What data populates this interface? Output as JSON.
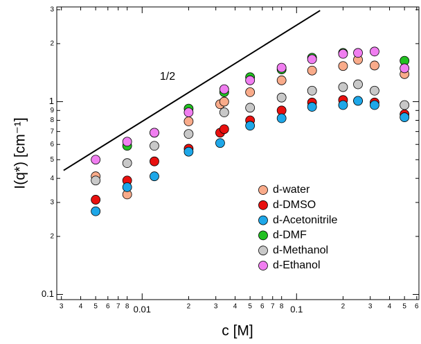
{
  "chart_data": {
    "type": "scatter",
    "xlabel": "c [M]",
    "ylabel": "I(q*) [cm⁻¹]",
    "log_x": true,
    "log_y": true,
    "xlim": [
      0.0028,
      0.62
    ],
    "ylim": [
      0.094,
      3.1
    ],
    "xticks": [
      {
        "value": 0.003,
        "label": "3"
      },
      {
        "value": 0.004,
        "label": "4"
      },
      {
        "value": 0.005,
        "label": "5"
      },
      {
        "value": 0.006,
        "label": "6"
      },
      {
        "value": 0.007,
        "label": "7"
      },
      {
        "value": 0.008,
        "label": "8"
      },
      0.01,
      {
        "value": 0.02,
        "label": "2"
      },
      {
        "value": 0.03,
        "label": "3"
      },
      {
        "value": 0.04,
        "label": "4"
      },
      {
        "value": 0.05,
        "label": "5"
      },
      {
        "value": 0.06,
        "label": "6"
      },
      {
        "value": 0.07,
        "label": "7"
      },
      {
        "value": 0.08,
        "label": "8"
      },
      0.1,
      {
        "value": 0.2,
        "label": "2"
      },
      {
        "value": 0.3,
        "label": "3"
      },
      {
        "value": 0.4,
        "label": "4"
      },
      {
        "value": 0.5,
        "label": "5"
      },
      {
        "value": 0.6,
        "label": "6"
      }
    ],
    "yticks": [
      0.1,
      {
        "value": 0.2,
        "label": "2"
      },
      {
        "value": 0.3,
        "label": "3"
      },
      {
        "value": 0.4,
        "label": "4"
      },
      {
        "value": 0.5,
        "label": "5"
      },
      {
        "value": 0.6,
        "label": "6"
      },
      {
        "value": 0.7,
        "label": "7"
      },
      {
        "value": 0.8,
        "label": "8"
      },
      {
        "value": 0.9,
        "label": "9"
      },
      1,
      {
        "value": 2,
        "label": "2"
      },
      {
        "value": 3,
        "label": "3"
      }
    ],
    "series": [
      {
        "name": "d-water",
        "color": "#f9ab8a",
        "x": [
          0.005,
          0.008,
          0.012,
          0.02,
          0.032,
          0.034,
          0.05,
          0.08,
          0.126,
          0.2,
          0.25,
          0.32,
          0.5
        ],
        "values": [
          0.41,
          0.33,
          0.69,
          0.79,
          0.97,
          1.0,
          1.12,
          1.29,
          1.45,
          1.53,
          1.65,
          1.54,
          1.39
        ]
      },
      {
        "name": "d-DMSO",
        "color": "#e8100f",
        "x": [
          0.005,
          0.008,
          0.012,
          0.02,
          0.032,
          0.034,
          0.05,
          0.08,
          0.126,
          0.2,
          0.25,
          0.32,
          0.5
        ],
        "values": [
          0.31,
          0.39,
          0.49,
          0.57,
          0.69,
          0.72,
          0.8,
          0.9,
          0.99,
          1.02,
          1.01,
          0.99,
          0.86
        ]
      },
      {
        "name": "d-Acetonitrile",
        "color": "#1ea7e8",
        "x": [
          0.005,
          0.008,
          0.012,
          0.02,
          0.032,
          0.05,
          0.08,
          0.126,
          0.2,
          0.25,
          0.32,
          0.5
        ],
        "values": [
          0.27,
          0.36,
          0.41,
          0.55,
          0.61,
          0.75,
          0.82,
          0.94,
          0.96,
          1.01,
          0.96,
          0.83
        ]
      },
      {
        "name": "d-DMF",
        "color": "#22c022",
        "x": [
          0.008,
          0.02,
          0.034,
          0.05,
          0.08,
          0.126,
          0.2,
          0.5
        ],
        "values": [
          0.59,
          0.92,
          1.12,
          1.34,
          1.47,
          1.69,
          1.79,
          1.63
        ]
      },
      {
        "name": "d-Methanol",
        "color": "#c8c8c8",
        "x": [
          0.005,
          0.008,
          0.012,
          0.02,
          0.034,
          0.05,
          0.08,
          0.126,
          0.2,
          0.25,
          0.32,
          0.5
        ],
        "values": [
          0.39,
          0.48,
          0.59,
          0.68,
          0.88,
          0.93,
          1.05,
          1.14,
          1.19,
          1.23,
          1.14,
          0.96
        ]
      },
      {
        "name": "d-Ethanol",
        "color": "#f07ef0",
        "x": [
          0.005,
          0.008,
          0.012,
          0.02,
          0.034,
          0.05,
          0.08,
          0.126,
          0.2,
          0.25,
          0.32,
          0.5
        ],
        "values": [
          0.5,
          0.62,
          0.69,
          0.88,
          1.16,
          1.29,
          1.5,
          1.66,
          1.77,
          1.79,
          1.82,
          1.49
        ]
      }
    ],
    "slope_line": {
      "label": "1/2",
      "color": "#000000",
      "x": [
        0.0031,
        0.142
      ],
      "values": [
        0.44,
        2.97
      ]
    }
  }
}
